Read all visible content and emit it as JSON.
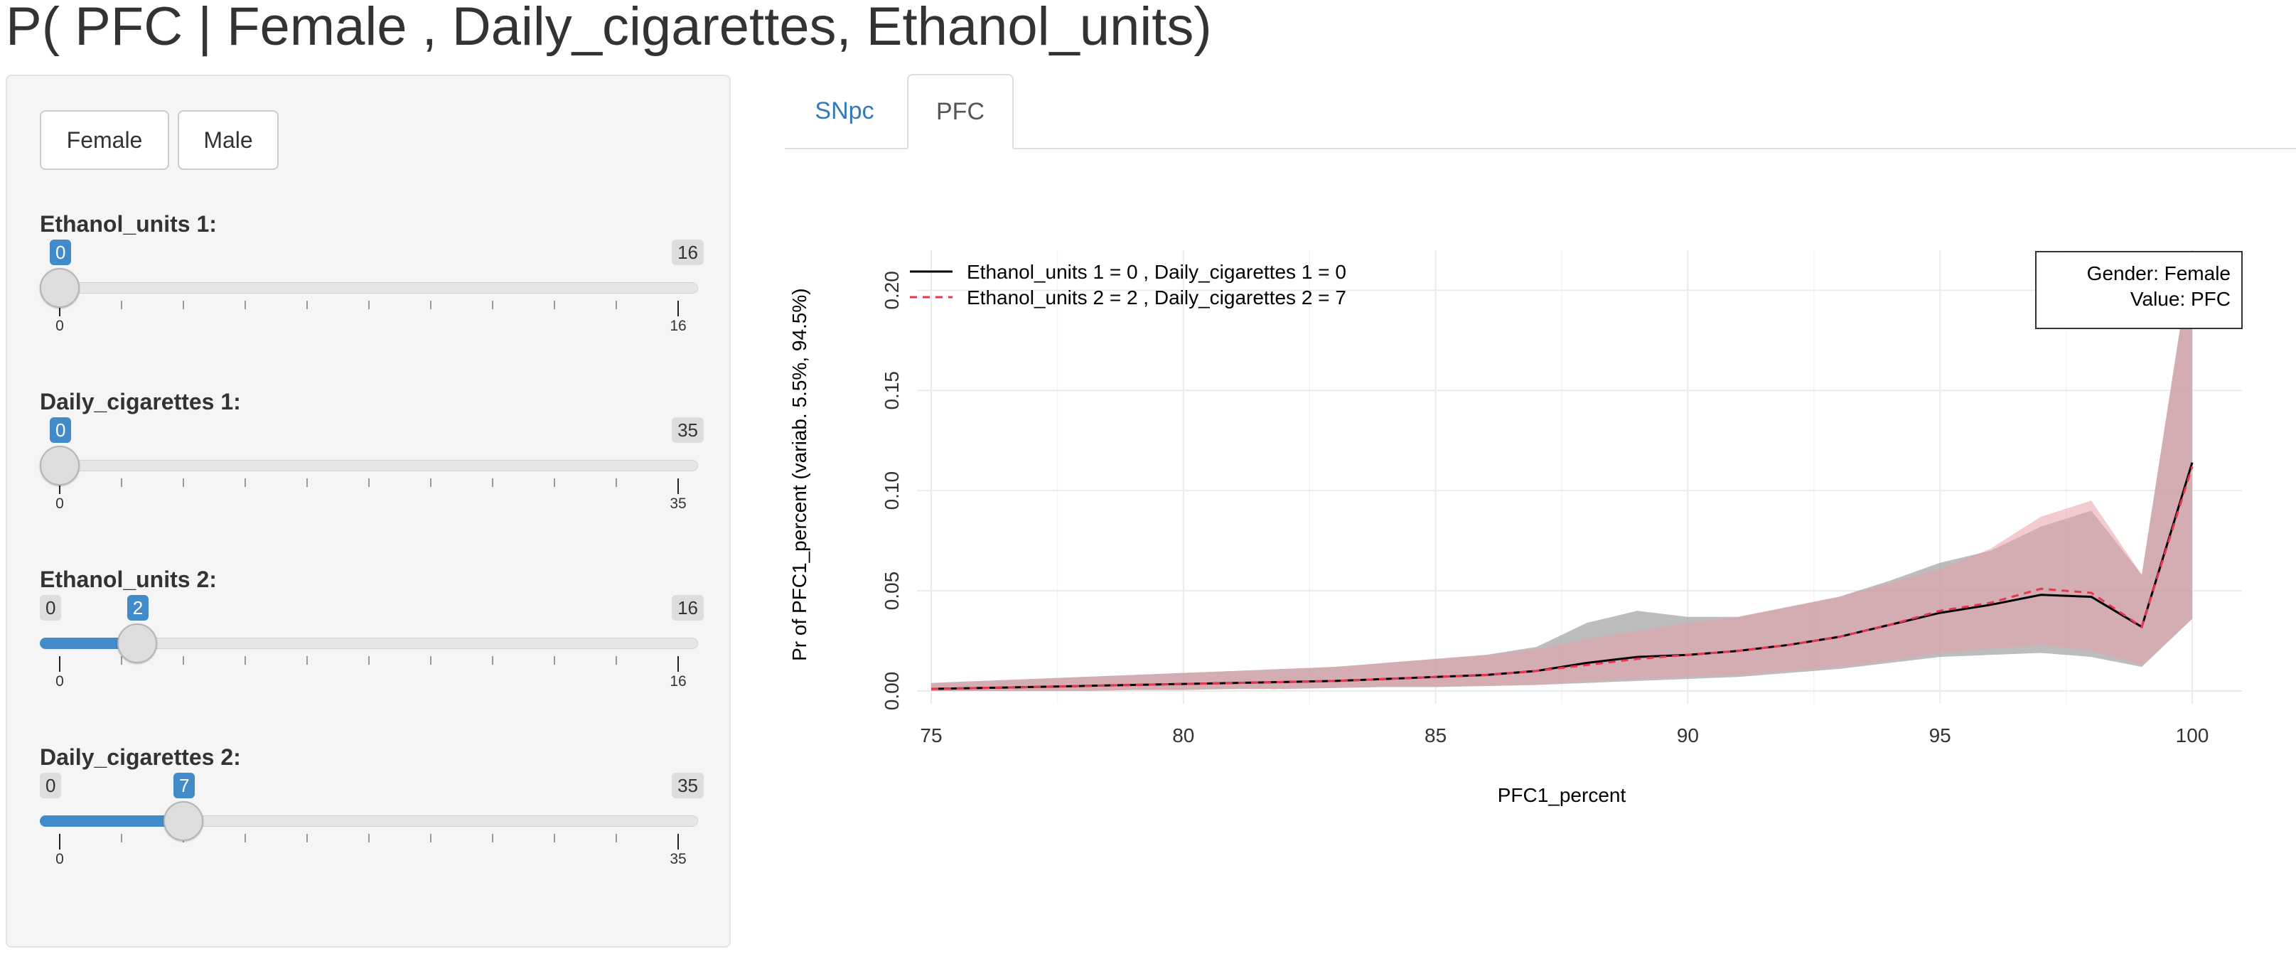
{
  "title": "P( PFC | Female , Daily_cigarettes, Ethanol_units)",
  "gender_buttons": {
    "female": "Female",
    "male": "Male"
  },
  "sliders": [
    {
      "label": "Ethanol_units 1:",
      "min": 0,
      "max": 16,
      "value": 0,
      "min_label": "0",
      "max_label": "16",
      "value_label": "0"
    },
    {
      "label": "Daily_cigarettes 1:",
      "min": 0,
      "max": 35,
      "value": 0,
      "min_label": "0",
      "max_label": "35",
      "value_label": "0"
    },
    {
      "label": "Ethanol_units 2:",
      "min": 0,
      "max": 16,
      "value": 2,
      "min_label": "0",
      "max_label": "16",
      "value_label": "2"
    },
    {
      "label": "Daily_cigarettes 2:",
      "min": 0,
      "max": 35,
      "value": 7,
      "min_label": "0",
      "max_label": "35",
      "value_label": "7"
    }
  ],
  "tabs": [
    {
      "label": "SNpc",
      "active": false
    },
    {
      "label": "PFC",
      "active": true
    }
  ],
  "colors": {
    "accent": "#428bca",
    "link": "#337ab7",
    "series1": "#000000",
    "series2": "#e8364f",
    "band1": "#999999",
    "band2": "#e8a0aa"
  },
  "chart_data": {
    "type": "line",
    "xlabel": "PFC1_percent",
    "ylabel": "Pr of PFC1_percent  (variab. 5.5%, 94.5%)",
    "xlim": [
      75,
      100
    ],
    "ylim": [
      0,
      0.22
    ],
    "xticks": [
      75,
      80,
      85,
      90,
      95,
      100
    ],
    "yticks": [
      0.0,
      0.05,
      0.1,
      0.15,
      0.2
    ],
    "ytick_labels": [
      "0.00",
      "0.05",
      "0.10",
      "0.15",
      "0.20"
    ],
    "grid": true,
    "info_box": [
      "Gender:  Female",
      "Value:  PFC"
    ],
    "legend_position": "top-left",
    "series": [
      {
        "name": "Ethanol_units 1 = 0 , Daily_cigarettes 1 = 0",
        "style": "solid",
        "x": [
          75,
          76,
          77,
          78,
          79,
          80,
          81,
          82,
          83,
          84,
          85,
          86,
          87,
          88,
          89,
          90,
          91,
          92,
          93,
          94,
          95,
          96,
          97,
          98,
          99,
          100
        ],
        "y": [
          0.001,
          0.0015,
          0.002,
          0.0025,
          0.003,
          0.0035,
          0.004,
          0.0045,
          0.005,
          0.006,
          0.007,
          0.008,
          0.01,
          0.014,
          0.017,
          0.018,
          0.02,
          0.023,
          0.027,
          0.033,
          0.039,
          0.043,
          0.048,
          0.047,
          0.032,
          0.114
        ],
        "lower": [
          0.0,
          0.0,
          0.0,
          0.0,
          0.0005,
          0.0005,
          0.001,
          0.001,
          0.0015,
          0.002,
          0.002,
          0.0025,
          0.003,
          0.004,
          0.005,
          0.006,
          0.007,
          0.009,
          0.011,
          0.014,
          0.017,
          0.018,
          0.019,
          0.017,
          0.012,
          0.036
        ],
        "upper": [
          0.004,
          0.005,
          0.006,
          0.007,
          0.008,
          0.009,
          0.01,
          0.011,
          0.012,
          0.014,
          0.016,
          0.018,
          0.022,
          0.034,
          0.04,
          0.037,
          0.037,
          0.042,
          0.047,
          0.055,
          0.064,
          0.07,
          0.082,
          0.09,
          0.058,
          0.22
        ]
      },
      {
        "name": "Ethanol_units 2 = 2 , Daily_cigarettes 2 = 7",
        "style": "dashed",
        "x": [
          75,
          76,
          77,
          78,
          79,
          80,
          81,
          82,
          83,
          84,
          85,
          86,
          87,
          88,
          89,
          90,
          91,
          92,
          93,
          94,
          95,
          96,
          97,
          98,
          99,
          100
        ],
        "y": [
          0.001,
          0.0015,
          0.002,
          0.0025,
          0.003,
          0.0035,
          0.004,
          0.0045,
          0.005,
          0.006,
          0.007,
          0.008,
          0.01,
          0.013,
          0.016,
          0.018,
          0.02,
          0.023,
          0.027,
          0.033,
          0.04,
          0.044,
          0.051,
          0.049,
          0.032,
          0.112
        ],
        "lower": [
          0.0,
          0.0,
          0.0,
          0.0,
          0.0005,
          0.0005,
          0.001,
          0.001,
          0.0015,
          0.002,
          0.002,
          0.0025,
          0.003,
          0.005,
          0.006,
          0.007,
          0.008,
          0.01,
          0.012,
          0.015,
          0.019,
          0.021,
          0.023,
          0.02,
          0.013,
          0.036
        ],
        "upper": [
          0.004,
          0.005,
          0.006,
          0.007,
          0.008,
          0.009,
          0.01,
          0.011,
          0.012,
          0.014,
          0.016,
          0.018,
          0.021,
          0.026,
          0.03,
          0.034,
          0.037,
          0.042,
          0.047,
          0.054,
          0.061,
          0.071,
          0.087,
          0.095,
          0.058,
          0.22
        ]
      }
    ]
  }
}
